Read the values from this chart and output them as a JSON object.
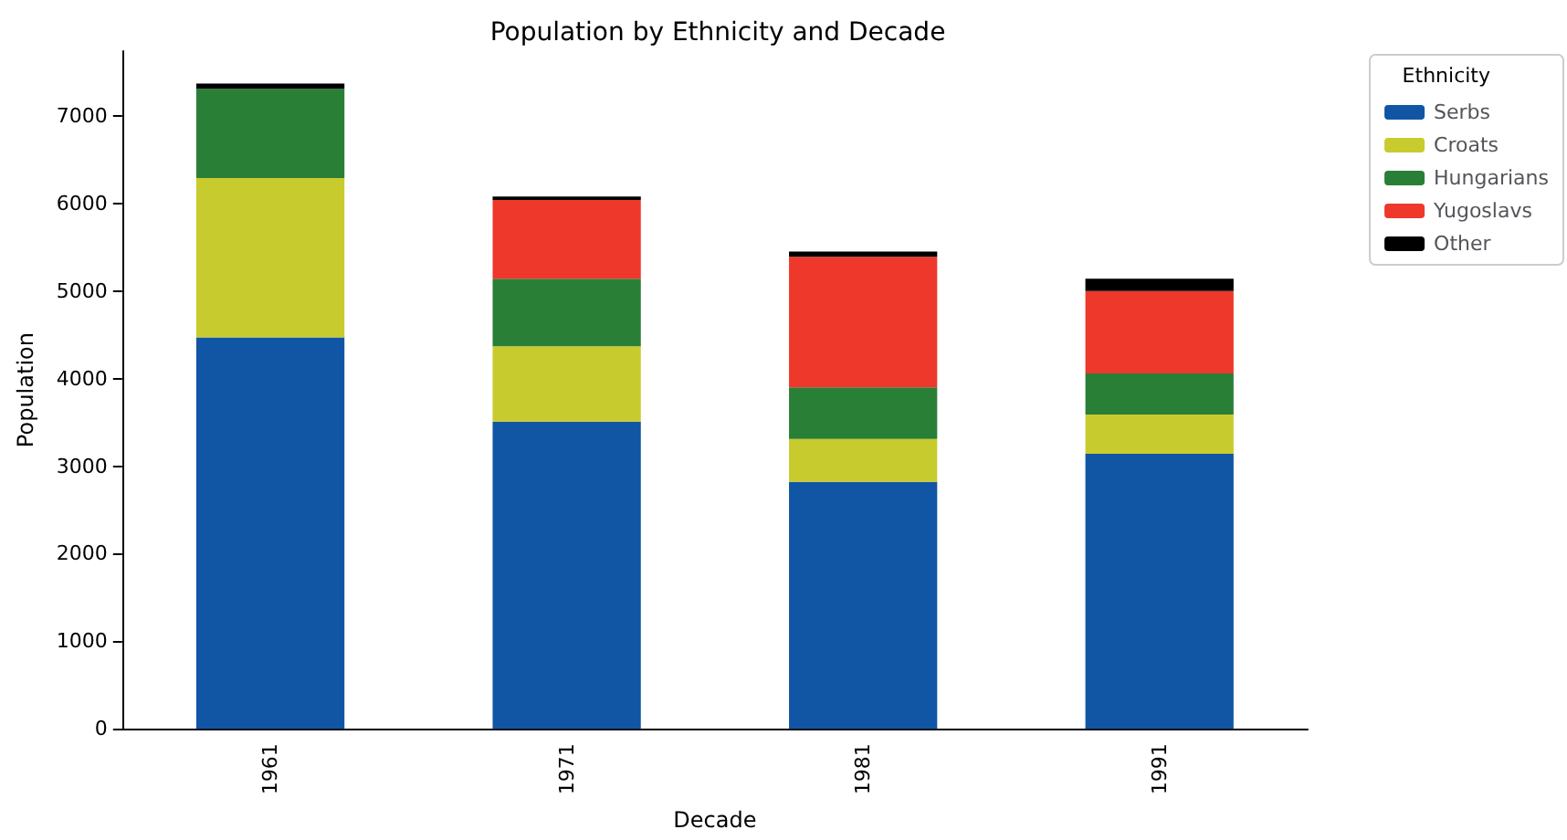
{
  "chart_data": {
    "type": "bar",
    "title": "Population by Ethnicity and Decade",
    "xlabel": "Decade",
    "ylabel": "Population",
    "legend_title": "Ethnicity",
    "categories": [
      "1961",
      "1971",
      "1981",
      "1991"
    ],
    "series": [
      {
        "name": "Serbs",
        "color": "#1155a5",
        "values": [
          4470,
          3510,
          2820,
          3140
        ]
      },
      {
        "name": "Croats",
        "color": "#c8cb2d",
        "values": [
          1820,
          860,
          490,
          450
        ]
      },
      {
        "name": "Hungarians",
        "color": "#2a7f36",
        "values": [
          1020,
          770,
          590,
          470
        ]
      },
      {
        "name": "Yugoslavs",
        "color": "#ee382b",
        "values": [
          0,
          900,
          1490,
          940
        ]
      },
      {
        "name": "Other",
        "color": "#000000",
        "values": [
          60,
          40,
          60,
          140
        ]
      }
    ],
    "stacked": true,
    "ylim": [
      0,
      7740
    ],
    "yticks": [
      0,
      1000,
      2000,
      3000,
      4000,
      5000,
      6000,
      7000
    ],
    "grid": false,
    "legend": "top right"
  }
}
